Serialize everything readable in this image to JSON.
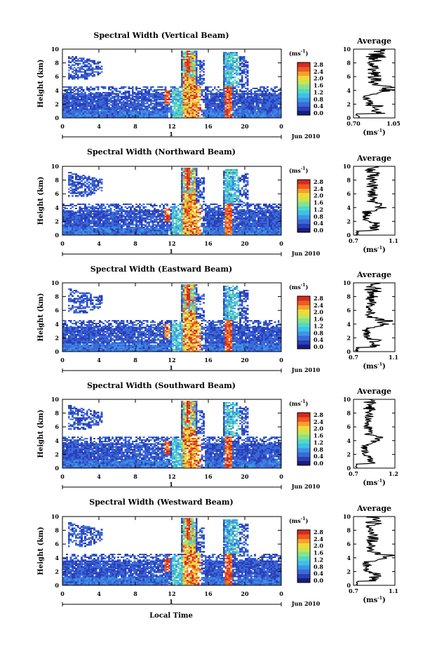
{
  "figure": {
    "ylabel": "Height (km)",
    "xlabel": "Local Time",
    "date_label": "Jun 2010",
    "day_label": "1",
    "colorbar_unit": "(ms",
    "colorbar_unit_exp": "-1",
    "colorbar_unit_close": ")",
    "colorbar_ticks": [
      "0.0",
      "0.4",
      "0.8",
      "1.2",
      "1.6",
      "2.0",
      "2.4",
      "2.8"
    ],
    "avg_title": "Average",
    "avg_xlabel": "(ms",
    "avg_xlabel_exp": "-1",
    "avg_xlabel_close": ")",
    "x_ticks": [
      "0",
      "4",
      "8",
      "12",
      "16",
      "20",
      "0"
    ],
    "y_ticks": [
      "0",
      "2",
      "4",
      "6",
      "8",
      "10"
    ]
  },
  "colors": {
    "colormap": [
      "#1c1c7a",
      "#2b3fb8",
      "#3a6ad8",
      "#3d95e6",
      "#3ec0ea",
      "#52d8c4",
      "#8be08c",
      "#c5e650",
      "#f1d83a",
      "#f6a02c",
      "#ee5a22",
      "#d42a1e"
    ]
  },
  "chart_data": [
    {
      "type": "heatmap",
      "title": "Spectral Width (Vertical Beam)",
      "xlim": [
        0,
        24
      ],
      "ylim": [
        0,
        10
      ],
      "clim": [
        0,
        2.8
      ],
      "avg_xlim": [
        0.7,
        1.05
      ],
      "avg_xticks": [
        "0.70",
        "1.05"
      ]
    },
    {
      "type": "heatmap",
      "title": "Spectral Width (Northward Beam)",
      "xlim": [
        0,
        24
      ],
      "ylim": [
        0,
        10
      ],
      "clim": [
        0,
        2.8
      ],
      "avg_xlim": [
        0.7,
        1.1
      ],
      "avg_xticks": [
        "0.7",
        "1.1"
      ]
    },
    {
      "type": "heatmap",
      "title": "Spectral Width (Eastward Beam)",
      "xlim": [
        0,
        24
      ],
      "ylim": [
        0,
        10
      ],
      "clim": [
        0,
        2.8
      ],
      "avg_xlim": [
        0.7,
        1.1
      ],
      "avg_xticks": [
        "0.7",
        "1.1"
      ]
    },
    {
      "type": "heatmap",
      "title": "Spectral Width (Southward Beam)",
      "xlim": [
        0,
        24
      ],
      "ylim": [
        0,
        10
      ],
      "clim": [
        0,
        2.8
      ],
      "avg_xlim": [
        0.7,
        1.2
      ],
      "avg_xticks": [
        "0.7",
        "1.2"
      ]
    },
    {
      "type": "heatmap",
      "title": "Spectral Width (Westward Beam)",
      "xlim": [
        0,
        24
      ],
      "ylim": [
        0,
        10
      ],
      "clim": [
        0,
        2.8
      ],
      "avg_xlim": [
        0.7,
        1.1
      ],
      "avg_xticks": [
        "0.7",
        "1.1"
      ]
    }
  ]
}
